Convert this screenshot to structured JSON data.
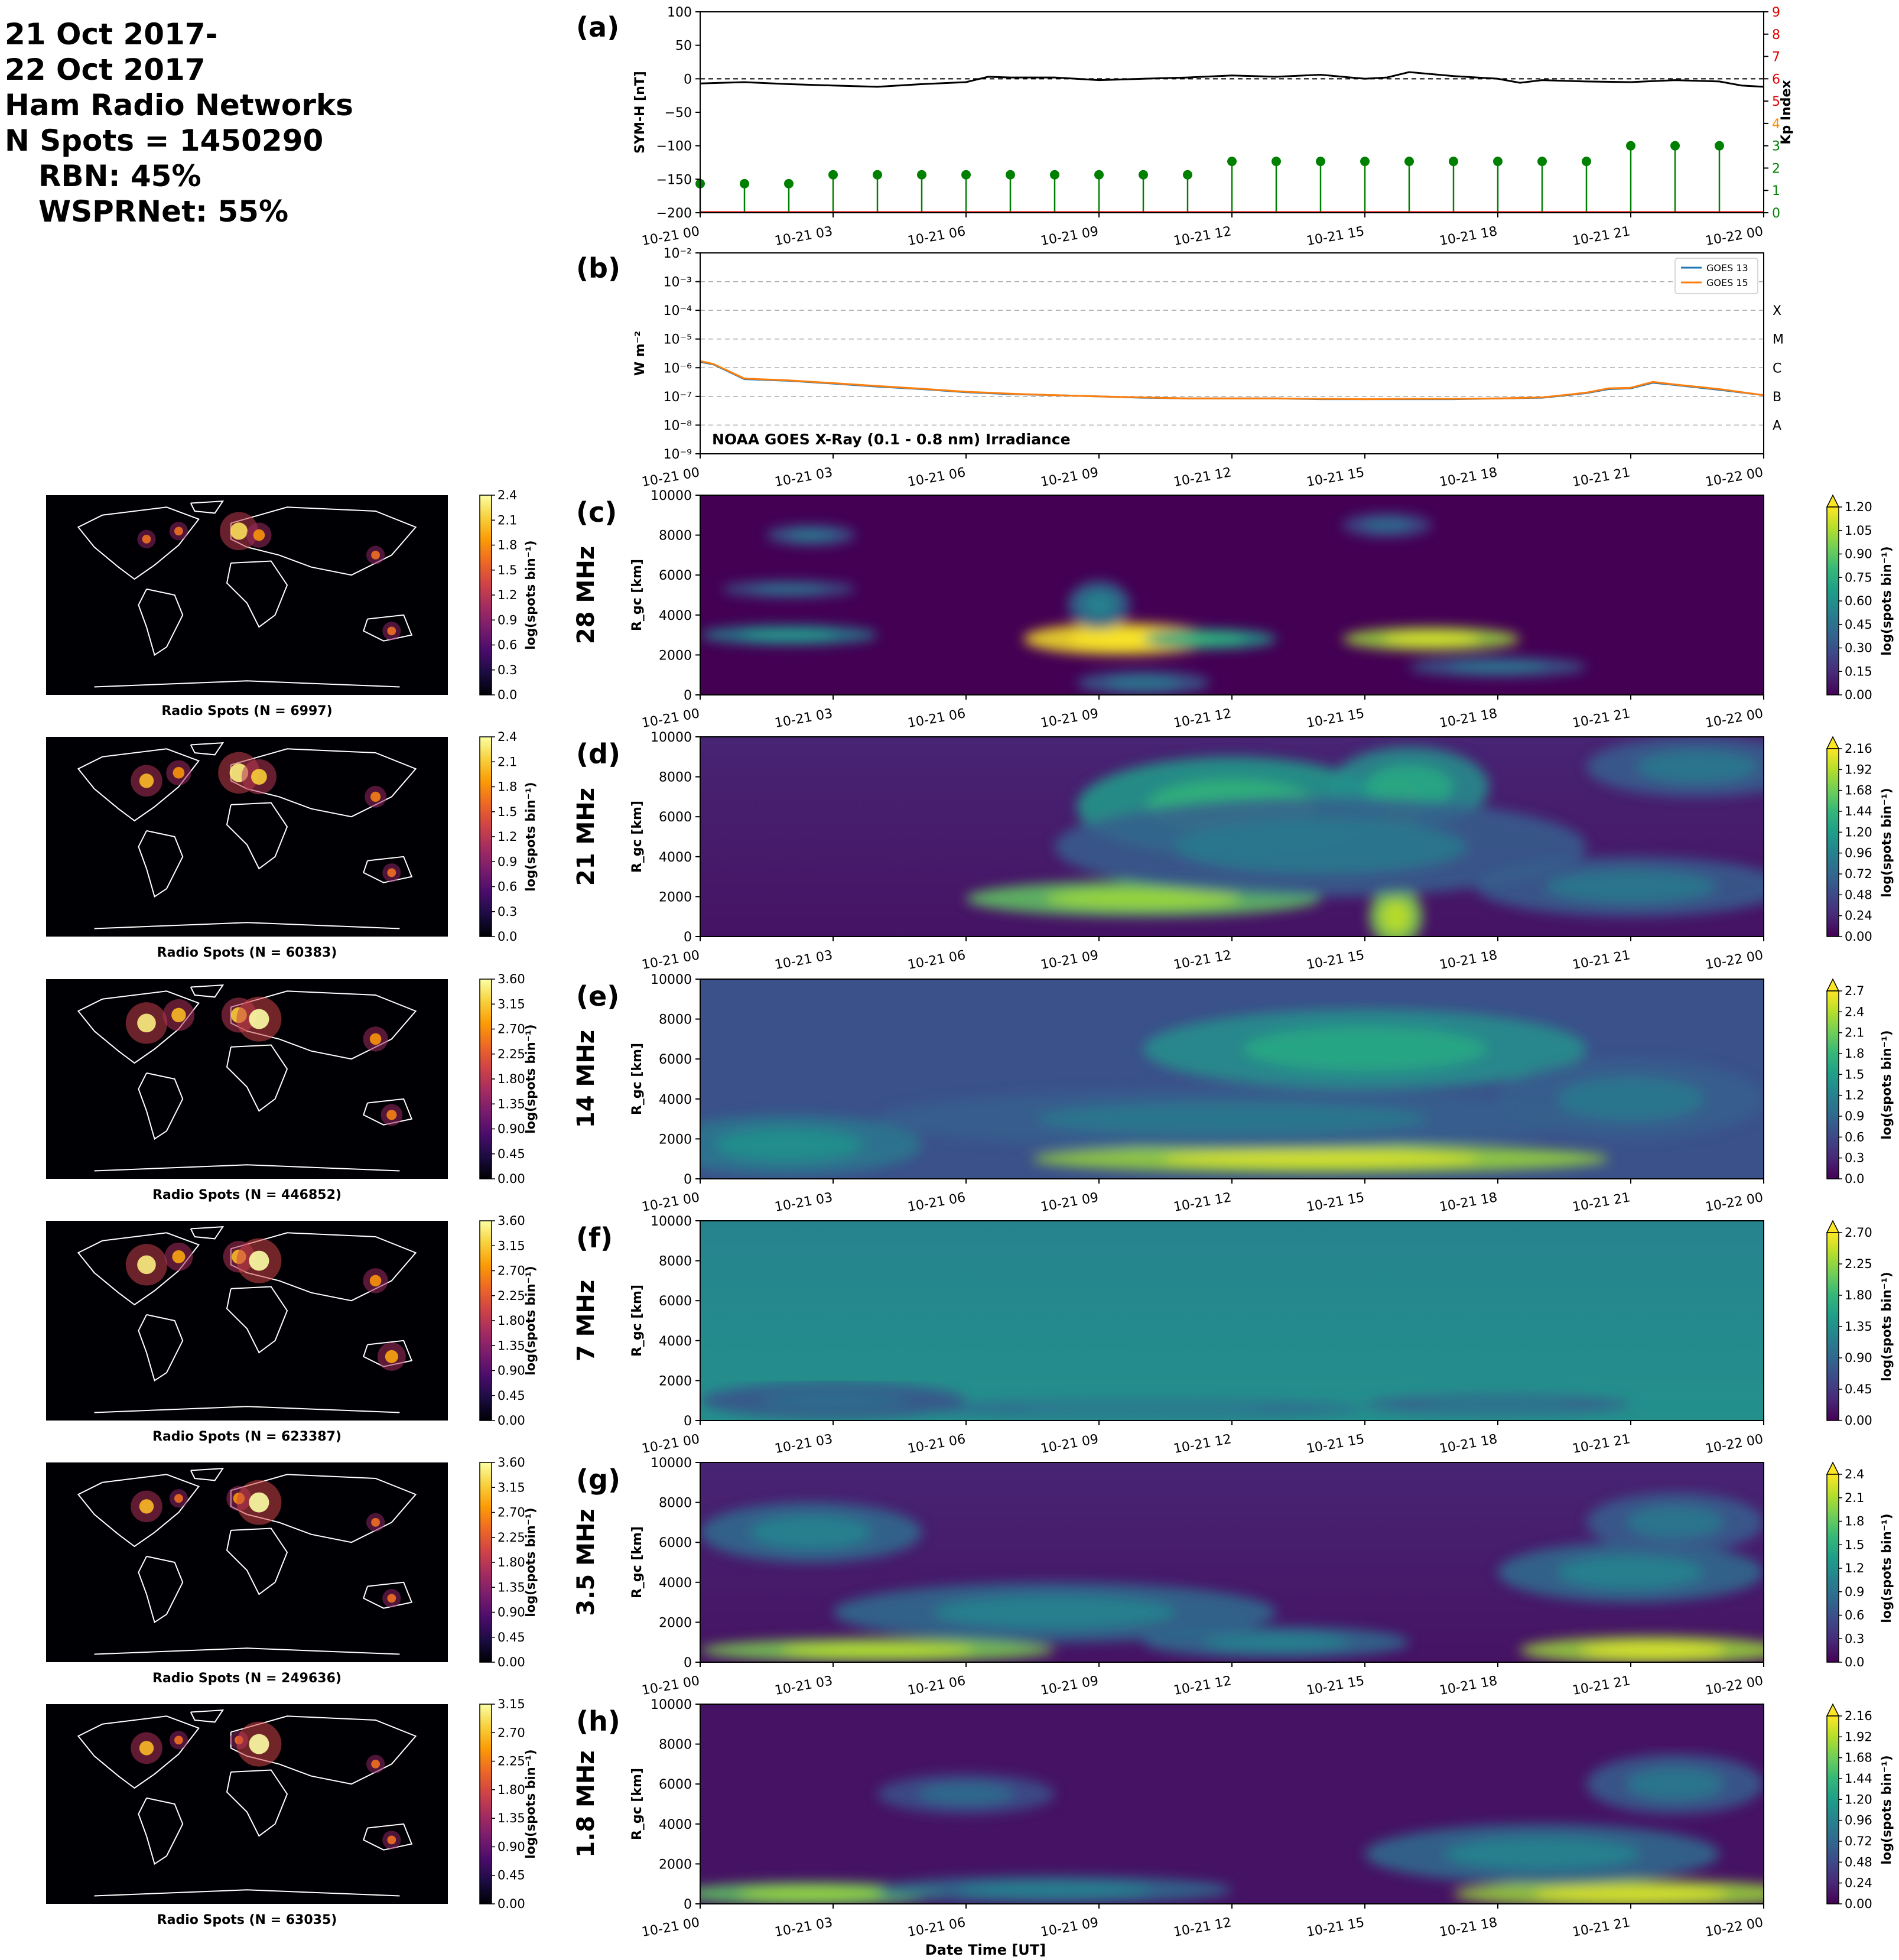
{
  "header": {
    "lines": [
      "21 Oct 2017-",
      "22 Oct 2017",
      "Ham Radio Networks",
      "N Spots = 1450290",
      "RBN: 45%",
      "WSPRNet: 55%"
    ]
  },
  "time_ticks": [
    "10-21 00",
    "10-21 03",
    "10-21 06",
    "10-21 09",
    "10-21 12",
    "10-21 15",
    "10-21 18",
    "10-21 21",
    "10-22 00"
  ],
  "xlabel": "Date Time [UT]",
  "colors": {
    "symh": "#000000",
    "kp_stem": "#008000",
    "kp_axis": "#e00000",
    "goes13": "#1f77b4",
    "goes15": "#ff7f0e",
    "viridis": [
      "#440154",
      "#482878",
      "#3e4989",
      "#31688e",
      "#26828e",
      "#1f9e89",
      "#35b779",
      "#6ece58",
      "#b5de2b",
      "#fde725"
    ],
    "inferno": [
      "#000004",
      "#1b0c41",
      "#4a0c6b",
      "#781c6d",
      "#a52c60",
      "#cf4446",
      "#ed6925",
      "#fb9b06",
      "#f7d13d",
      "#fcffa4"
    ]
  },
  "chart_data": [
    {
      "panel": "(a)",
      "type": "line",
      "ylabel": "SYM-H [nT]",
      "ylim": [
        -200,
        100
      ],
      "yticks": [
        "100",
        "50",
        "0",
        "−50",
        "−100",
        "−150",
        "−200"
      ],
      "x_hours": [
        0,
        1,
        2,
        3,
        4,
        5,
        6,
        6.5,
        7,
        8,
        9,
        10,
        11,
        12,
        13,
        14,
        15,
        15.5,
        16,
        17,
        18,
        18.5,
        19,
        20,
        21,
        22,
        23,
        23.5,
        24
      ],
      "symh": [
        -7,
        -5,
        -8,
        -10,
        -12,
        -8,
        -5,
        3,
        2,
        2,
        -2,
        0,
        2,
        5,
        3,
        6,
        0,
        2,
        10,
        4,
        0,
        -6,
        -2,
        -4,
        -5,
        -2,
        -4,
        -10,
        -12
      ],
      "right_axis": {
        "label": "Kp Index",
        "ylim": [
          0,
          9
        ],
        "yticks": [
          "0",
          "1",
          "2",
          "3",
          "4",
          "5",
          "6",
          "7",
          "8",
          "9"
        ],
        "tick_colors": [
          "#008000",
          "#008000",
          "#008000",
          "#008000",
          "#ff8c00",
          "#e00000",
          "#e00000",
          "#e00000",
          "#e00000",
          "#e00000"
        ],
        "kp_x_hours": [
          0,
          1,
          2,
          3,
          4,
          5,
          6,
          7,
          8,
          9,
          10,
          11,
          12,
          13,
          14,
          15,
          16,
          17,
          18,
          19,
          20,
          21,
          22,
          23
        ],
        "kp": [
          1.3,
          1.3,
          1.3,
          1.7,
          1.7,
          1.7,
          1.7,
          1.7,
          1.7,
          1.7,
          1.7,
          1.7,
          2.3,
          2.3,
          2.3,
          2.3,
          2.3,
          2.3,
          2.3,
          2.3,
          2.3,
          3.0,
          3.0,
          3.0
        ]
      }
    },
    {
      "panel": "(b)",
      "type": "line",
      "yscale": "log",
      "ylabel": "W m⁻²",
      "ylim": [
        1e-09,
        0.01
      ],
      "yticks": [
        "10⁻²",
        "10⁻³",
        "10⁻⁴",
        "10⁻⁵",
        "10⁻⁶",
        "10⁻⁷",
        "10⁻⁸",
        "10⁻⁹"
      ],
      "flare_classes": [
        "X",
        "M",
        "C",
        "B",
        "A"
      ],
      "annotation": "NOAA GOES X-Ray (0.1 - 0.8 nm) Irradiance",
      "legend_position": "upper right",
      "series": [
        {
          "name": "GOES 13",
          "x_hours": [
            0,
            0.3,
            1,
            2,
            3,
            4,
            5,
            6,
            7,
            8,
            9,
            10,
            11,
            12,
            13,
            14,
            15,
            16,
            17,
            18,
            19,
            20,
            20.5,
            21,
            21.5,
            22,
            23,
            24
          ],
          "values": [
            1.6e-06,
            1.3e-06,
            4e-07,
            3.5e-07,
            2.8e-07,
            2.2e-07,
            1.8e-07,
            1.4e-07,
            1.2e-07,
            1.1e-07,
            1e-07,
            9e-08,
            8.5e-08,
            8.5e-08,
            8.5e-08,
            8e-08,
            8e-08,
            8e-08,
            8e-08,
            8.5e-08,
            9e-08,
            1.3e-07,
            1.8e-07,
            1.9e-07,
            3e-07,
            2.5e-07,
            1.7e-07,
            1.1e-07
          ]
        },
        {
          "name": "GOES 15",
          "x_hours": [
            0,
            0.3,
            1,
            2,
            3,
            4,
            5,
            6,
            7,
            8,
            9,
            10,
            11,
            12,
            13,
            14,
            15,
            16,
            17,
            18,
            19,
            20,
            20.5,
            21,
            21.5,
            22,
            23,
            24
          ],
          "values": [
            1.7e-06,
            1.35e-06,
            4.2e-07,
            3.6e-07,
            2.9e-07,
            2.3e-07,
            1.85e-07,
            1.45e-07,
            1.25e-07,
            1.1e-07,
            1e-07,
            9.2e-08,
            8.5e-08,
            8.5e-08,
            8.5e-08,
            8.2e-08,
            8e-08,
            8.2e-08,
            8.2e-08,
            8.5e-08,
            9.2e-08,
            1.35e-07,
            1.9e-07,
            2e-07,
            3.2e-07,
            2.6e-07,
            1.8e-07,
            1.1e-07
          ]
        }
      ]
    },
    {
      "panel": "(c)",
      "band": "28 MHz",
      "type": "heatmap",
      "ylabel": "R_gc [km]",
      "ylim": [
        0,
        10000
      ],
      "yticks": [
        "10000",
        "8000",
        "6000",
        "4000",
        "2000",
        "0"
      ],
      "colorbar": {
        "label": "log(spots bin⁻¹)",
        "ticks": [
          "1.20",
          "1.05",
          "0.90",
          "0.75",
          "0.60",
          "0.45",
          "0.30",
          "0.15",
          "0.00"
        ]
      },
      "map": {
        "caption": "Radio Spots (N = 6997)",
        "colorbar_ticks": [
          "2.4",
          "2.1",
          "1.8",
          "1.5",
          "1.2",
          "0.9",
          "0.6",
          "0.3",
          "0.0"
        ]
      },
      "blobs": [
        [
          9.5,
          2800,
          2.2,
          800,
          1.0
        ],
        [
          11.5,
          2800,
          1.5,
          500,
          0.55
        ],
        [
          16.5,
          2800,
          2.0,
          600,
          0.85
        ],
        [
          2,
          3000,
          2.0,
          500,
          0.45
        ],
        [
          2,
          5300,
          1.5,
          400,
          0.3
        ],
        [
          9,
          4500,
          0.7,
          1200,
          0.35
        ],
        [
          10,
          600,
          1.5,
          600,
          0.3
        ],
        [
          18,
          1400,
          2.0,
          500,
          0.3
        ],
        [
          2.5,
          8000,
          1.0,
          500,
          0.3
        ],
        [
          15.5,
          8500,
          1.0,
          600,
          0.25
        ]
      ],
      "base": [
        0.0,
        0.0
      ]
    },
    {
      "panel": "(d)",
      "band": "21 MHz",
      "type": "heatmap",
      "ylabel": "R_gc [km]",
      "ylim": [
        0,
        10000
      ],
      "yticks": [
        "10000",
        "8000",
        "6000",
        "4000",
        "2000",
        "0"
      ],
      "colorbar": {
        "label": "log(spots bin⁻¹)",
        "ticks": [
          "2.16",
          "1.92",
          "1.68",
          "1.44",
          "1.20",
          "0.96",
          "0.72",
          "0.48",
          "0.24",
          "0.00"
        ]
      },
      "map": {
        "caption": "Radio Spots (N = 60383)",
        "colorbar_ticks": [
          "2.4",
          "2.1",
          "1.8",
          "1.5",
          "1.2",
          "0.9",
          "0.6",
          "0.3",
          "0.0"
        ]
      },
      "blobs": [
        [
          10,
          1900,
          4.0,
          900,
          0.75
        ],
        [
          15.7,
          6500,
          0.6,
          1500,
          0.85
        ],
        [
          15.7,
          1000,
          0.6,
          1500,
          0.8
        ],
        [
          12,
          6500,
          3.5,
          2500,
          0.55
        ],
        [
          16,
          7500,
          1.8,
          2000,
          0.5
        ],
        [
          14,
          4500,
          6.0,
          2500,
          0.3
        ],
        [
          21,
          2500,
          3.5,
          1500,
          0.3
        ],
        [
          22.5,
          8500,
          2.5,
          1500,
          0.3
        ]
      ],
      "base": [
        0.05,
        0.1
      ]
    },
    {
      "panel": "(e)",
      "band": "14 MHz",
      "type": "heatmap",
      "ylabel": "R_gc [km]",
      "ylim": [
        0,
        10000
      ],
      "yticks": [
        "10000",
        "8000",
        "6000",
        "4000",
        "2000",
        "0"
      ],
      "colorbar": {
        "label": "log(spots bin⁻¹)",
        "ticks": [
          "2.7",
          "2.4",
          "2.1",
          "1.8",
          "1.5",
          "1.2",
          "0.9",
          "0.6",
          "0.3",
          "0.0"
        ]
      },
      "map": {
        "caption": "Radio Spots (N = 446852)",
        "colorbar_ticks": [
          "3.60",
          "3.15",
          "2.70",
          "2.25",
          "1.80",
          "1.35",
          "0.90",
          "0.45",
          "0.00"
        ]
      },
      "blobs": [
        [
          14,
          1000,
          6.5,
          700,
          0.85
        ],
        [
          2,
          1700,
          3.0,
          1500,
          0.4
        ],
        [
          15,
          6500,
          5.0,
          2000,
          0.5
        ],
        [
          12,
          3000,
          8.0,
          1500,
          0.3
        ],
        [
          21,
          4000,
          3.0,
          2000,
          0.3
        ]
      ],
      "base": [
        0.25,
        0.25
      ]
    },
    {
      "panel": "(f)",
      "band": "7 MHz",
      "type": "heatmap",
      "ylabel": "R_gc [km]",
      "ylim": [
        0,
        10000
      ],
      "yticks": [
        "10000",
        "8000",
        "6000",
        "4000",
        "2000",
        "0"
      ],
      "colorbar": {
        "label": "log(spots bin⁻¹)",
        "ticks": [
          "2.70",
          "2.25",
          "1.80",
          "1.35",
          "0.90",
          "0.45",
          "0.00"
        ]
      },
      "map": {
        "caption": "Radio Spots (N = 623387)",
        "colorbar_ticks": [
          "3.60",
          "3.15",
          "2.70",
          "2.25",
          "1.80",
          "1.35",
          "0.90",
          "0.45",
          "0.00"
        ]
      },
      "blobs": [
        [
          10,
          600,
          5.0,
          500,
          0.35
        ],
        [
          18,
          800,
          3.0,
          500,
          0.3
        ],
        [
          3,
          1000,
          3.0,
          900,
          0.25
        ]
      ],
      "base": [
        0.5,
        0.45
      ]
    },
    {
      "panel": "(g)",
      "band": "3.5 MHz",
      "type": "heatmap",
      "ylabel": "R_gc [km]",
      "ylim": [
        0,
        10000
      ],
      "yticks": [
        "10000",
        "8000",
        "6000",
        "4000",
        "2000",
        "0"
      ],
      "colorbar": {
        "label": "log(spots bin⁻¹)",
        "ticks": [
          "2.4",
          "2.1",
          "1.8",
          "1.5",
          "1.2",
          "0.9",
          "0.6",
          "0.3",
          "0.0"
        ]
      },
      "map": {
        "caption": "Radio Spots (N = 249636)",
        "colorbar_ticks": [
          "3.60",
          "3.15",
          "2.70",
          "2.25",
          "1.80",
          "1.35",
          "0.90",
          "0.45",
          "0.00"
        ]
      },
      "blobs": [
        [
          4,
          600,
          4.0,
          600,
          0.8
        ],
        [
          21.5,
          600,
          3.0,
          700,
          0.85
        ],
        [
          2.5,
          6500,
          2.5,
          1500,
          0.35
        ],
        [
          8,
          2500,
          5.0,
          1500,
          0.35
        ],
        [
          21,
          4500,
          3.0,
          1500,
          0.35
        ],
        [
          22,
          7000,
          2.0,
          1500,
          0.3
        ],
        [
          13,
          1000,
          3.0,
          800,
          0.35
        ]
      ],
      "base": [
        0.05,
        0.1
      ]
    },
    {
      "panel": "(h)",
      "band": "1.8 MHz",
      "type": "heatmap",
      "ylabel": "R_gc [km]",
      "ylim": [
        0,
        10000
      ],
      "yticks": [
        "10000",
        "8000",
        "6000",
        "4000",
        "2000",
        "0"
      ],
      "colorbar": {
        "label": "log(spots bin⁻¹)",
        "ticks": [
          "2.16",
          "1.92",
          "1.68",
          "1.44",
          "1.20",
          "0.96",
          "0.72",
          "0.48",
          "0.24",
          "0.00"
        ]
      },
      "map": {
        "caption": "Radio Spots (N = 63035)",
        "colorbar_ticks": [
          "3.15",
          "2.70",
          "2.25",
          "1.80",
          "1.35",
          "0.90",
          "0.45",
          "0.00"
        ]
      },
      "blobs": [
        [
          2.5,
          500,
          3.0,
          600,
          0.75
        ],
        [
          21,
          500,
          4.0,
          700,
          0.85
        ],
        [
          8,
          700,
          4.0,
          700,
          0.35
        ],
        [
          19,
          2500,
          4.0,
          1500,
          0.35
        ],
        [
          22,
          6000,
          2.0,
          1500,
          0.3
        ],
        [
          6,
          5500,
          2.0,
          1000,
          0.25
        ]
      ],
      "base": [
        0.05,
        0.05
      ]
    }
  ]
}
